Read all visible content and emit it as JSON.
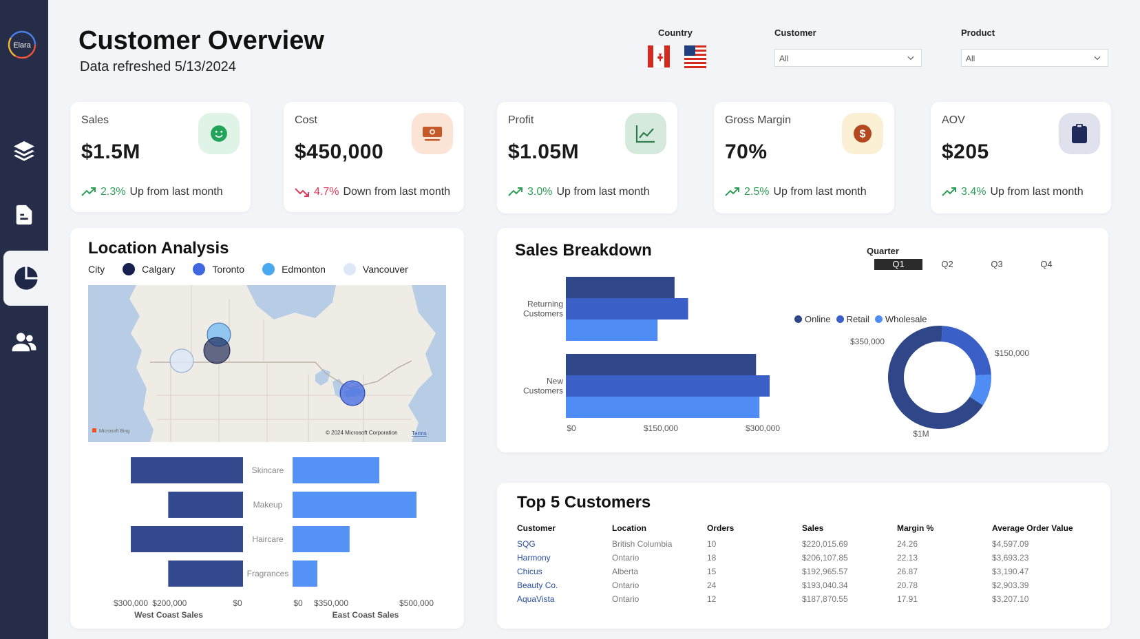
{
  "app": {
    "logo_text": "Elara"
  },
  "header": {
    "title": "Customer Overview",
    "subtitle": "Data refreshed 5/13/2024",
    "filters": {
      "country_label": "Country",
      "customer_label": "Customer",
      "customer_value": "All",
      "product_label": "Product",
      "product_value": "All"
    }
  },
  "sidebar": {
    "items": [
      {
        "icon": "layers-icon"
      },
      {
        "icon": "document-icon"
      },
      {
        "icon": "pie-chart-icon",
        "active": true
      },
      {
        "icon": "users-icon"
      }
    ]
  },
  "kpis": [
    {
      "label": "Sales",
      "value": "$1.5M",
      "change": "2.3%",
      "trend_text": "Up from last month",
      "direction": "up",
      "icon": "smile-icon",
      "icon_bg": "#dff3e6",
      "icon_color": "#23a45b"
    },
    {
      "label": "Cost",
      "value": "$450,000",
      "change": "4.7%",
      "trend_text": "Down from last month",
      "direction": "down",
      "icon": "cash-icon",
      "icon_bg": "#fbe3d6",
      "icon_color": "#c45a2a"
    },
    {
      "label": "Profit",
      "value": "$1.05M",
      "change": "3.0%",
      "trend_text": "Up from last month",
      "direction": "up",
      "icon": "line-chart-icon",
      "icon_bg": "#d5e9dc",
      "icon_color": "#2e7d4f"
    },
    {
      "label": "Gross Margin",
      "value": "70%",
      "change": "2.5%",
      "trend_text": "Up from last month",
      "direction": "up",
      "icon": "dollar-icon",
      "icon_bg": "#fbf0d3",
      "icon_color": "#b4481f"
    },
    {
      "label": "AOV",
      "value": "$205",
      "change": "3.4%",
      "trend_text": "Up from last month",
      "direction": "up",
      "icon": "clipboard-icon",
      "icon_bg": "#dfe1ec",
      "icon_color": "#1e2a5a"
    }
  ],
  "location": {
    "title": "Location Analysis",
    "legend_label": "City",
    "cities": [
      {
        "name": "Calgary",
        "color": "#15204e"
      },
      {
        "name": "Toronto",
        "color": "#3f67e0"
      },
      {
        "name": "Edmonton",
        "color": "#4aa8f0"
      },
      {
        "name": "Vancouver",
        "color": "#dce8f7"
      }
    ],
    "map_attribution": "© 2024 Microsoft Corporation",
    "map_terms": "Terms",
    "map_brand": "Microsoft Bing"
  },
  "sales_breakdown": {
    "title": "Sales Breakdown",
    "quarter_label": "Quarter",
    "quarters": [
      "Q1",
      "Q2",
      "Q3",
      "Q4"
    ],
    "active_quarter": "Q1"
  },
  "top5": {
    "title": "Top 5 Customers",
    "columns": [
      "Customer",
      "Location",
      "Orders",
      "Sales",
      "Margin %",
      "Average Order Value"
    ],
    "rows": [
      [
        "SQG",
        "British Columbia",
        "10",
        "$220,015.69",
        "24.26",
        "$4,597.09"
      ],
      [
        "Harmony",
        "Ontario",
        "18",
        "$206,107.85",
        "22.13",
        "$3,693.23"
      ],
      [
        "Chicus",
        "Alberta",
        "15",
        "$192,965.57",
        "26.87",
        "$3,190.47"
      ],
      [
        "Beauty Co.",
        "Ontario",
        "24",
        "$193,040.34",
        "20.78",
        "$2,903.39"
      ],
      [
        "AquaVista",
        "Ontario",
        "12",
        "$187,870.55",
        "17.91",
        "$3,207.10"
      ]
    ]
  },
  "chart_data": [
    {
      "id": "coast-sales",
      "type": "bar",
      "categories": [
        "Skincare",
        "Makeup",
        "Haircare",
        "Fragrances"
      ],
      "series": [
        {
          "name": "West Coast Sales",
          "values": [
            300000,
            200000,
            300000,
            200000
          ],
          "color": "#334a8e"
        },
        {
          "name": "East Coast Sales",
          "values": [
            350000,
            500000,
            230000,
            100000
          ],
          "color": "#5592f5"
        }
      ],
      "west_ticks": [
        "$300,000",
        "$200,000",
        "$0"
      ],
      "east_ticks": [
        "$0",
        "$350,000",
        "$500,000"
      ],
      "xlabel_west": "West Coast Sales",
      "xlabel_east": "East Coast Sales"
    },
    {
      "id": "customer-breakdown",
      "type": "bar",
      "categories": [
        "Returning Customers",
        "New Customers"
      ],
      "series": [
        {
          "name": "Online",
          "values": [
            160000,
            280000
          ],
          "color": "#2f4688"
        },
        {
          "name": "Retail",
          "values": [
            180000,
            300000
          ],
          "color": "#3a5fc7"
        },
        {
          "name": "Wholesale",
          "values": [
            135000,
            285000
          ],
          "color": "#4f8df5"
        }
      ],
      "ticks": [
        "$0",
        "$150,000",
        "$300,000"
      ],
      "xlim": [
        0,
        550000
      ]
    },
    {
      "id": "channel-donut",
      "type": "pie",
      "legend": [
        "Online",
        "Retail",
        "Wholesale"
      ],
      "slices": [
        {
          "name": "Online",
          "value": 1000000,
          "label": "$1M",
          "color": "#2f4688"
        },
        {
          "name": "Retail",
          "value": 350000,
          "label": "$350,000",
          "color": "#3a5fc7"
        },
        {
          "name": "Wholesale",
          "value": 150000,
          "label": "$150,000",
          "color": "#4f8df5"
        }
      ]
    }
  ]
}
